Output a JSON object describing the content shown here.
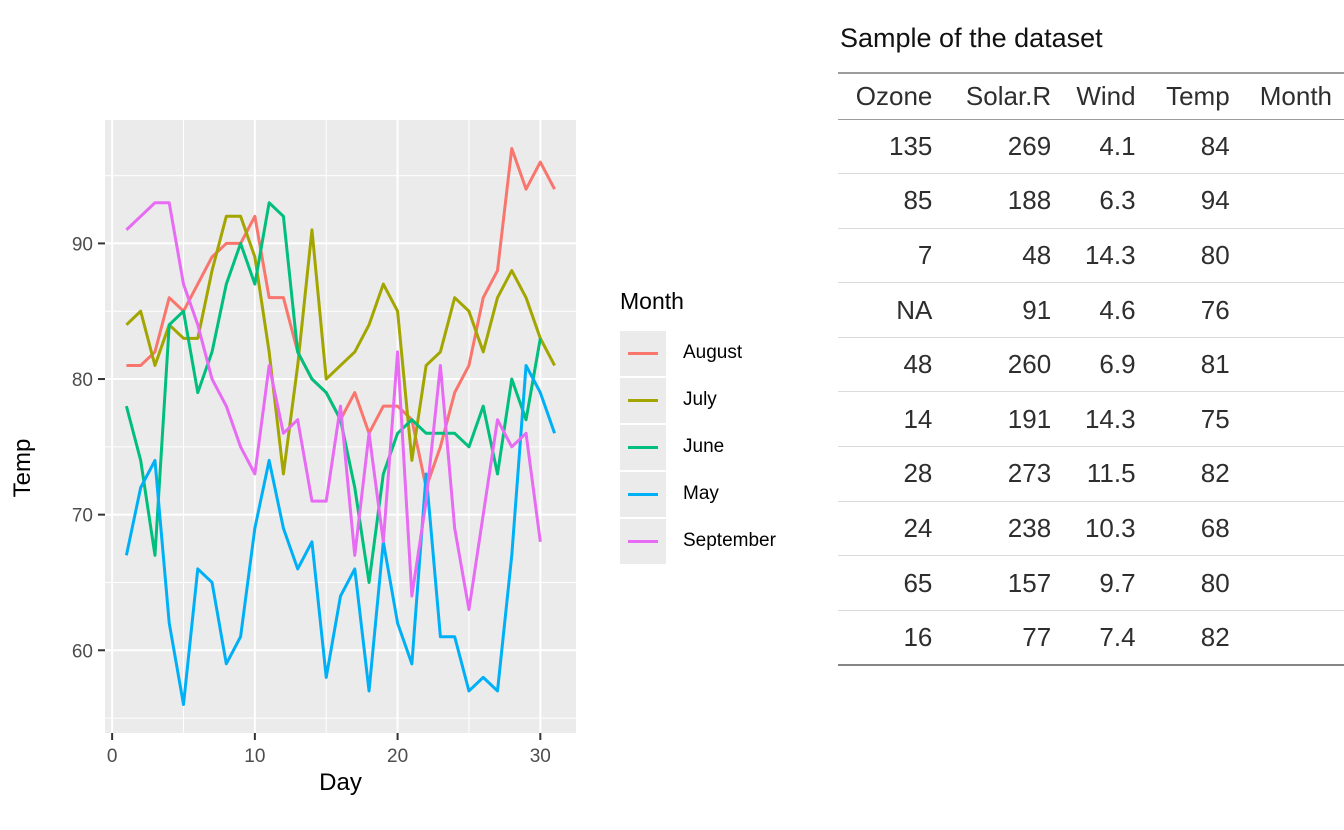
{
  "chart_data": {
    "type": "line",
    "title": "",
    "xlabel": "Day",
    "ylabel": "Temp",
    "x_ticks": [
      0,
      10,
      20,
      30
    ],
    "x_minor_ticks": [
      5,
      15,
      25
    ],
    "y_ticks": [
      60,
      70,
      80,
      90
    ],
    "y_minor_ticks": [
      55,
      65,
      75,
      85,
      95
    ],
    "xlim": [
      -0.5,
      32.5
    ],
    "ylim": [
      53.9,
      99.1
    ],
    "grid": true,
    "panel_bg": "#EBEBEB",
    "grid_color": "#FFFFFF",
    "legend_title": "Month",
    "legend_position": "right",
    "series": [
      {
        "name": "August",
        "color": "#F8766D",
        "x": [
          1,
          2,
          3,
          4,
          5,
          6,
          7,
          8,
          9,
          10,
          11,
          12,
          13,
          14,
          15,
          16,
          17,
          18,
          19,
          20,
          21,
          22,
          23,
          24,
          25,
          26,
          27,
          28,
          29,
          30,
          31
        ],
        "y": [
          81,
          81,
          82,
          86,
          85,
          87,
          89,
          90,
          90,
          92,
          86,
          86,
          82,
          80,
          79,
          77,
          79,
          76,
          78,
          78,
          77,
          72,
          75,
          79,
          81,
          86,
          88,
          97,
          94,
          96,
          94
        ]
      },
      {
        "name": "July",
        "color": "#A3A500",
        "x": [
          1,
          2,
          3,
          4,
          5,
          6,
          7,
          8,
          9,
          10,
          11,
          12,
          13,
          14,
          15,
          16,
          17,
          18,
          19,
          20,
          21,
          22,
          23,
          24,
          25,
          26,
          27,
          28,
          29,
          30,
          31
        ],
        "y": [
          84,
          85,
          81,
          84,
          83,
          83,
          88,
          92,
          92,
          89,
          82,
          73,
          81,
          91,
          80,
          81,
          82,
          84,
          87,
          85,
          74,
          81,
          82,
          86,
          85,
          82,
          86,
          88,
          86,
          83,
          81
        ]
      },
      {
        "name": "June",
        "color": "#00BF7D",
        "x": [
          1,
          2,
          3,
          4,
          5,
          6,
          7,
          8,
          9,
          10,
          11,
          12,
          13,
          14,
          15,
          16,
          17,
          18,
          19,
          20,
          21,
          22,
          23,
          24,
          25,
          26,
          27,
          28,
          29,
          30
        ],
        "y": [
          78,
          74,
          67,
          84,
          85,
          79,
          82,
          87,
          90,
          87,
          93,
          92,
          82,
          80,
          79,
          77,
          72,
          65,
          73,
          76,
          77,
          76,
          76,
          76,
          75,
          78,
          73,
          80,
          77,
          83
        ]
      },
      {
        "name": "May",
        "color": "#00B0F6",
        "x": [
          1,
          2,
          3,
          4,
          5,
          6,
          7,
          8,
          9,
          10,
          11,
          12,
          13,
          14,
          15,
          16,
          17,
          18,
          19,
          20,
          21,
          22,
          23,
          24,
          25,
          26,
          27,
          28,
          29,
          30,
          31
        ],
        "y": [
          67,
          72,
          74,
          62,
          56,
          66,
          65,
          59,
          61,
          69,
          74,
          69,
          66,
          68,
          58,
          64,
          66,
          57,
          68,
          62,
          59,
          73,
          61,
          61,
          57,
          58,
          57,
          67,
          81,
          79,
          76
        ]
      },
      {
        "name": "September",
        "color": "#E76BF3",
        "x": [
          1,
          2,
          3,
          4,
          5,
          6,
          7,
          8,
          9,
          10,
          11,
          12,
          13,
          14,
          15,
          16,
          17,
          18,
          19,
          20,
          21,
          22,
          23,
          24,
          25,
          26,
          27,
          28,
          29,
          30
        ],
        "y": [
          91,
          92,
          93,
          93,
          87,
          84,
          80,
          78,
          75,
          73,
          81,
          76,
          77,
          71,
          71,
          78,
          67,
          76,
          68,
          82,
          64,
          71,
          81,
          69,
          63,
          70,
          77,
          75,
          76,
          68
        ]
      }
    ]
  },
  "table": {
    "title": "Sample of the dataset",
    "columns": [
      "Ozone",
      "Solar.R",
      "Wind",
      "Temp",
      "Month"
    ],
    "rows": [
      [
        "135",
        "269",
        "4.1",
        "84",
        ""
      ],
      [
        "85",
        "188",
        "6.3",
        "94",
        ""
      ],
      [
        "7",
        "48",
        "14.3",
        "80",
        ""
      ],
      [
        "NA",
        "91",
        "4.6",
        "76",
        ""
      ],
      [
        "48",
        "260",
        "6.9",
        "81",
        ""
      ],
      [
        "14",
        "191",
        "14.3",
        "75",
        ""
      ],
      [
        "28",
        "273",
        "11.5",
        "82",
        ""
      ],
      [
        "24",
        "238",
        "10.3",
        "68",
        ""
      ],
      [
        "65",
        "157",
        "9.7",
        "80",
        ""
      ],
      [
        "16",
        "77",
        "7.4",
        "82",
        ""
      ]
    ]
  }
}
